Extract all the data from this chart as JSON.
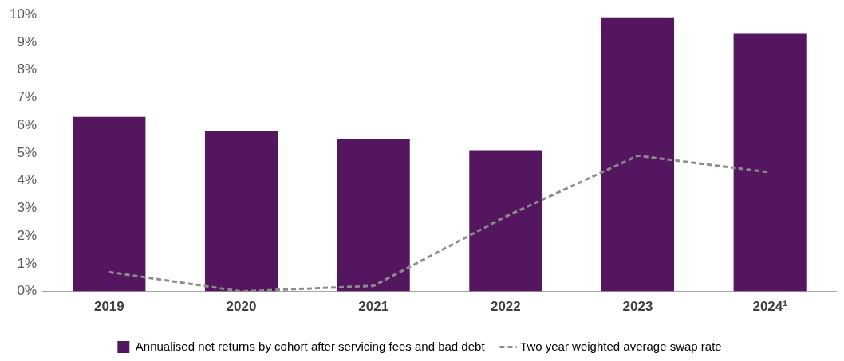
{
  "chart_data": {
    "type": "bar",
    "categories": [
      "2019",
      "2020",
      "2021",
      "2022",
      "2023",
      "2024¹"
    ],
    "series": [
      {
        "name": "Annualised net returns by cohort after servicing fees and bad debt",
        "color": "#54175f",
        "values": [
          6.3,
          5.8,
          5.5,
          5.1,
          9.9,
          9.3
        ]
      },
      {
        "name": "Two year weighted average swap rate",
        "type": "line",
        "color": "#8c8c8c",
        "line_style": "dashed",
        "marker": "none",
        "values": [
          0.7,
          0.0,
          0.2,
          2.7,
          4.9,
          4.3
        ]
      }
    ],
    "ylim": [
      0,
      10
    ],
    "yticks": [
      {
        "value": 0,
        "label": "0%"
      },
      {
        "value": 1,
        "label": "1%"
      },
      {
        "value": 2,
        "label": "2%"
      },
      {
        "value": 3,
        "label": "3%"
      },
      {
        "value": 4,
        "label": "4%"
      },
      {
        "value": 5,
        "label": "5%"
      },
      {
        "value": 6,
        "label": "6%"
      },
      {
        "value": 7,
        "label": "7%"
      },
      {
        "value": 8,
        "label": "8%"
      },
      {
        "value": 9,
        "label": "9%"
      },
      {
        "value": 10,
        "label": "10%"
      }
    ],
    "grid": false,
    "legend": "bottom"
  }
}
